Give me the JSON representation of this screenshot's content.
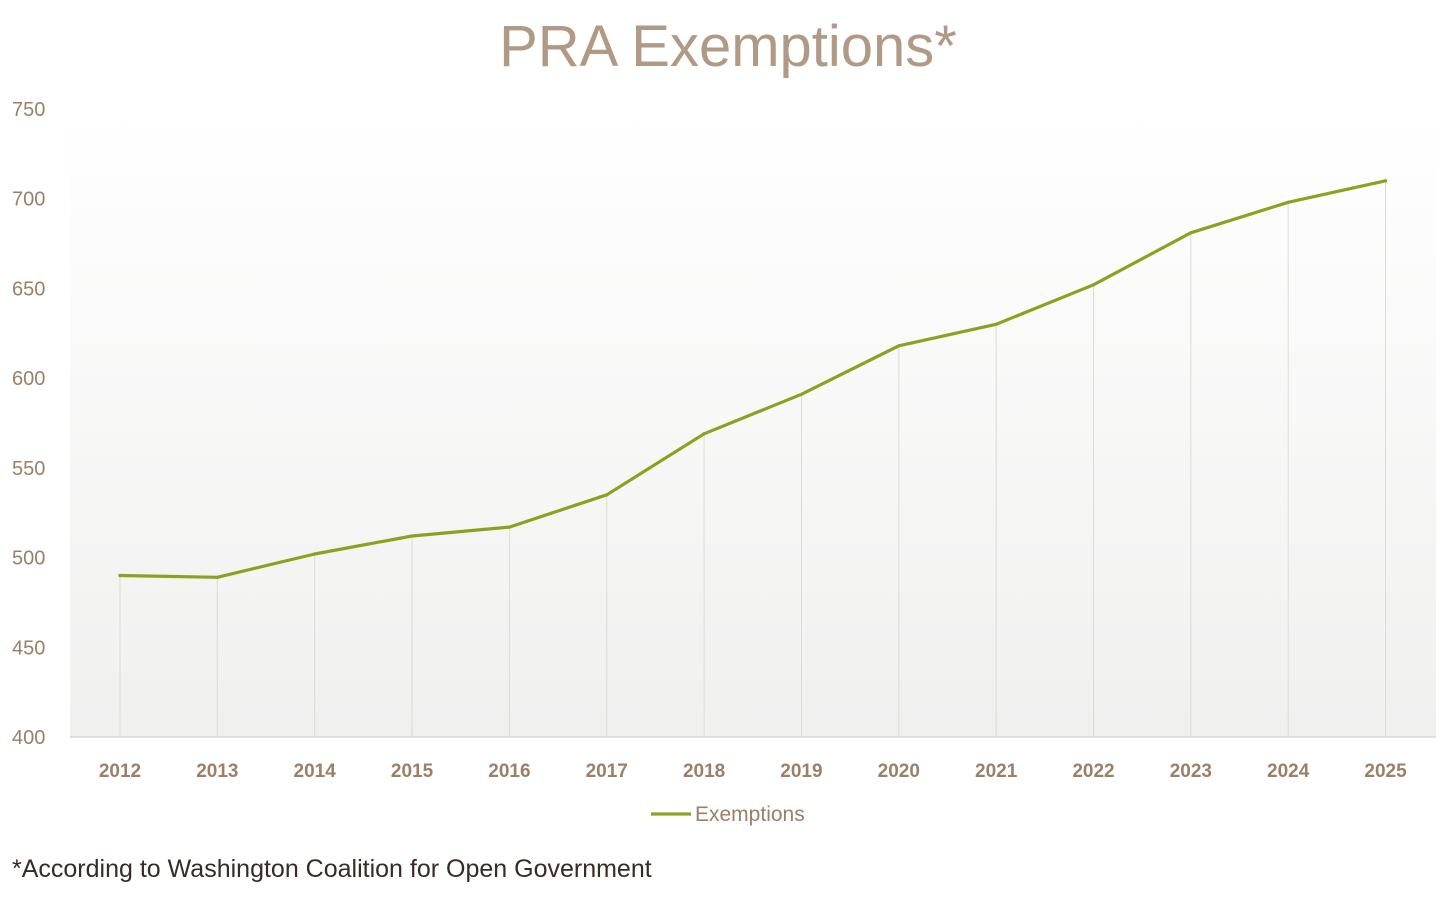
{
  "chart_data": {
    "type": "line",
    "title": "PRA Exemptions*",
    "xlabel": "",
    "ylabel": "",
    "categories": [
      "2012",
      "2013",
      "2014",
      "2015",
      "2016",
      "2017",
      "2018",
      "2019",
      "2020",
      "2021",
      "2022",
      "2023",
      "2024",
      "2025"
    ],
    "series": [
      {
        "name": "Exemptions",
        "color": "#8aa31f",
        "values": [
          490,
          489,
          502,
          512,
          517,
          535,
          569,
          591,
          618,
          630,
          652,
          681,
          698,
          710
        ]
      }
    ],
    "ylim": [
      400,
      750
    ],
    "yticks": [
      "400",
      "450",
      "500",
      "550",
      "600",
      "650",
      "700",
      "750"
    ],
    "grid": "vertical",
    "legend": "bottom-center"
  },
  "footnote": "*According to Washington Coalition for Open Government"
}
